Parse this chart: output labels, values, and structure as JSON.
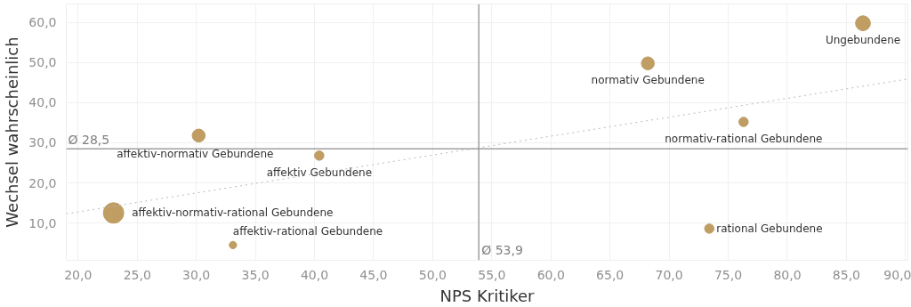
{
  "chart_data": {
    "type": "bubble",
    "xlabel": "NPS Kritiker",
    "ylabel": "Wechsel wahrscheinlich",
    "xlim": [
      19.0,
      90.2
    ],
    "ylim": [
      0.7,
      64.6
    ],
    "xticks": [
      {
        "value": 20,
        "label": "20,0"
      },
      {
        "value": 25,
        "label": "25,0"
      },
      {
        "value": 30,
        "label": "30,0"
      },
      {
        "value": 35,
        "label": "35,0"
      },
      {
        "value": 40,
        "label": "40,0"
      },
      {
        "value": 45,
        "label": "45,0"
      },
      {
        "value": 50,
        "label": "50,0"
      },
      {
        "value": 55,
        "label": "55,0"
      },
      {
        "value": 60,
        "label": "60,0"
      },
      {
        "value": 65,
        "label": "65,0"
      },
      {
        "value": 70,
        "label": "70,0"
      },
      {
        "value": 75,
        "label": "75,0"
      },
      {
        "value": 80,
        "label": "80,0"
      },
      {
        "value": 85,
        "label": "85,0"
      },
      {
        "value": 90,
        "label": "90,0"
      }
    ],
    "yticks": [
      {
        "value": 10,
        "label": "10,0"
      },
      {
        "value": 20,
        "label": "20,0"
      },
      {
        "value": 30,
        "label": "30,0"
      },
      {
        "value": 40,
        "label": "40,0"
      },
      {
        "value": 50,
        "label": "50,0"
      },
      {
        "value": 60,
        "label": "60,0"
      }
    ],
    "grid": true,
    "marker": "circle",
    "series": [
      {
        "name": "affektiv-normativ-rational Gebundene",
        "color": "#bf9d63",
        "x": [
          23.0
        ],
        "values": [
          12.5
        ],
        "sizes": [
          1
        ]
      },
      {
        "name": "affektiv-normativ Gebundene",
        "color": "#bf9d63",
        "x": [
          30.2
        ],
        "values": [
          31.8
        ],
        "sizes": [
          0.4
        ]
      },
      {
        "name": "affektiv Gebundene",
        "color": "#bf9d63",
        "x": [
          40.4
        ],
        "values": [
          26.8
        ],
        "sizes": [
          0.21
        ]
      },
      {
        "name": "affektiv-rational Gebundene",
        "color": "#bf9d63",
        "x": [
          33.1
        ],
        "values": [
          4.5
        ],
        "sizes": [
          0.13
        ]
      },
      {
        "name": "normativ Gebundene",
        "color": "#bf9d63",
        "x": [
          68.2
        ],
        "values": [
          49.8
        ],
        "sizes": [
          0.4
        ]
      },
      {
        "name": "Ungebundene",
        "color": "#bf9d63",
        "x": [
          86.4
        ],
        "values": [
          59.8
        ],
        "sizes": [
          0.53
        ]
      },
      {
        "name": "normativ-rational Gebundene",
        "color": "#bf9d63",
        "x": [
          76.3
        ],
        "values": [
          35.2
        ],
        "sizes": [
          0.21
        ]
      },
      {
        "name": "rational Gebundene",
        "color": "#bf9d63",
        "x": [
          73.4
        ],
        "values": [
          8.6
        ],
        "sizes": [
          0.21
        ]
      },
      {
        "type": "line",
        "marker": "none",
        "color": "#b8b8b8",
        "line_style": "dotted",
        "x": [
          19.0,
          90.2
        ],
        "values": [
          12.3,
          45.9
        ]
      }
    ],
    "ref_lines": [
      {
        "axis": "x",
        "value": 53.9,
        "label": "Ø 53,9",
        "color": "#a0a0a0"
      },
      {
        "axis": "y",
        "value": 28.5,
        "label": "Ø 28,5",
        "color": "#a0a0a0"
      }
    ]
  }
}
